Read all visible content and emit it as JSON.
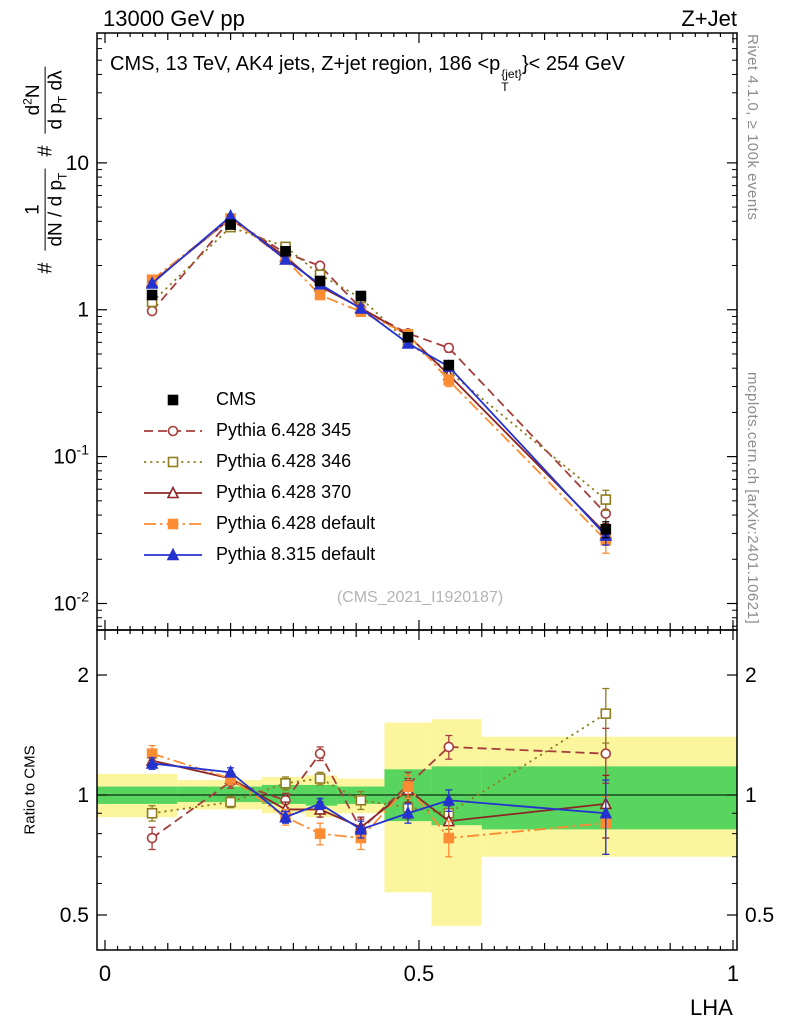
{
  "header": {
    "left": "13000 GeV pp",
    "right": "Z+Jet"
  },
  "title": {
    "pre": "CMS, 13 TeV, AK4 jets, Z+jet region, 186 <p",
    "sub": "T",
    "sup": "{jet}",
    "post": "}< 254 GeV"
  },
  "margin_labels": {
    "right_top": "Rivet 4.1.0, ≥ 100k events",
    "right_bottom": "mcplots.cern.ch [arXiv:2401.10621]"
  },
  "axes": {
    "xlabel": "LHA",
    "ratio_ylabel": "Ratio to CMS",
    "main_ylabel": {
      "hash": "#",
      "f1_num": "1",
      "f1_den_a": "dN / d p",
      "f1_den_sub": "T",
      "f2_num_a": "d",
      "f2_num_sup": "2",
      "f2_num_b": "N",
      "f2_den_a": "d p",
      "f2_den_sub": "T",
      "f2_den_b": " dλ"
    }
  },
  "chart_data": {
    "type": "line",
    "title_text": "CMS, 13 TeV, AK4 jets, Z+jet region, 186 <p_T^{jet}< 254 GeV",
    "watermark": "(CMS_2021_I1920187)",
    "xlabel": "LHA",
    "x": [
      0.075,
      0.2,
      0.2875,
      0.3425,
      0.4075,
      0.4825,
      0.5475,
      0.7975
    ],
    "xlim": [
      -0.0127,
      1.0064
    ],
    "xticks": {
      "major": [
        0,
        0.5,
        1
      ],
      "labels": [
        "0",
        "0.5",
        "1"
      ]
    },
    "main_panel": {
      "yscale": "log",
      "ylim": [
        0.0066,
        76.6
      ],
      "ytick_exponents": [
        -2,
        -1,
        0,
        1
      ]
    },
    "ratio_panel": {
      "yscale": "log",
      "ylim": [
        0.4085,
        2.594
      ],
      "yticks": [
        0.5,
        1,
        2
      ],
      "ytick_labels": [
        "0.5",
        "1",
        "2"
      ],
      "yminor": [
        0.6,
        0.7,
        0.8,
        0.9
      ]
    },
    "colors": {
      "band_yellow": "#fbf69e",
      "band_green": "#58d55e"
    },
    "series": [
      {
        "name": "CMS",
        "color": "#000000",
        "marker": "square",
        "filled": true,
        "line": "none",
        "values": [
          1.26,
          3.8,
          2.5,
          1.57,
          1.24,
          0.65,
          0.42,
          0.032
        ],
        "yerr": [
          0.06,
          0.12,
          0.09,
          0.06,
          0.05,
          0.03,
          0.022,
          0.004
        ],
        "ratio": null,
        "ratio_err": null
      },
      {
        "name": "Pythia 6.428 345",
        "color": "#a63c3c",
        "marker": "circle",
        "filled": false,
        "line": "dash",
        "values": [
          0.98,
          4.1,
          2.43,
          1.99,
          1.02,
          0.69,
          0.55,
          0.041
        ],
        "yerr": [
          0.05,
          0.1,
          0.08,
          0.07,
          0.05,
          0.04,
          0.035,
          0.007
        ],
        "ratio": [
          0.78,
          1.08,
          0.97,
          1.27,
          0.82,
          1.06,
          1.32,
          1.27
        ],
        "ratio_err": [
          0.05,
          0.04,
          0.04,
          0.05,
          0.05,
          0.08,
          0.09,
          0.2
        ]
      },
      {
        "name": "Pythia 6.428 346",
        "color": "#8f7c21",
        "marker": "square",
        "filled": false,
        "line": "dot",
        "values": [
          1.13,
          3.65,
          2.68,
          1.73,
          1.2,
          0.6,
          0.38,
          0.051
        ],
        "yerr": [
          0.05,
          0.1,
          0.08,
          0.06,
          0.05,
          0.03,
          0.03,
          0.008
        ],
        "ratio": [
          0.9,
          0.96,
          1.07,
          1.1,
          0.97,
          0.93,
          0.9,
          1.6
        ],
        "ratio_err": [
          0.04,
          0.03,
          0.04,
          0.04,
          0.05,
          0.06,
          0.08,
          0.25
        ]
      },
      {
        "name": "Pythia 6.428 370",
        "color": "#8c2626",
        "marker": "triangle",
        "filled": false,
        "line": "solid",
        "values": [
          1.54,
          4.18,
          2.3,
          1.44,
          1.03,
          0.67,
          0.36,
          0.03
        ],
        "yerr": [
          0.06,
          0.1,
          0.07,
          0.05,
          0.04,
          0.04,
          0.03,
          0.005
        ],
        "ratio": [
          1.22,
          1.1,
          0.92,
          0.92,
          0.83,
          1.03,
          0.86,
          0.95
        ],
        "ratio_err": [
          0.05,
          0.04,
          0.04,
          0.04,
          0.05,
          0.07,
          0.08,
          0.17
        ]
      },
      {
        "name": "Pythia 6.428 default",
        "color": "#fb8c32",
        "marker": "square",
        "filled": true,
        "line": "dashdot",
        "values": [
          1.6,
          4.18,
          2.2,
          1.26,
          0.97,
          0.68,
          0.33,
          0.027
        ],
        "yerr": [
          0.07,
          0.1,
          0.07,
          0.06,
          0.05,
          0.04,
          0.03,
          0.005
        ],
        "ratio": [
          1.27,
          1.1,
          0.88,
          0.8,
          0.78,
          1.05,
          0.78,
          0.85
        ],
        "ratio_err": [
          0.06,
          0.04,
          0.04,
          0.05,
          0.05,
          0.07,
          0.08,
          0.14
        ]
      },
      {
        "name": "Pythia 8.315 default",
        "color": "#2433cf",
        "marker": "triangle",
        "filled": true,
        "line": "solid",
        "values": [
          1.51,
          4.33,
          2.2,
          1.49,
          1.02,
          0.59,
          0.41,
          0.029
        ],
        "yerr": [
          0.05,
          0.09,
          0.06,
          0.05,
          0.04,
          0.025,
          0.02,
          0.004
        ],
        "ratio": [
          1.2,
          1.14,
          0.88,
          0.95,
          0.82,
          0.9,
          0.97,
          0.9
        ],
        "ratio_err": [
          0.04,
          0.03,
          0.03,
          0.03,
          0.04,
          0.05,
          0.06,
          0.19
        ]
      }
    ],
    "bands": [
      {
        "x0": -0.0127,
        "x1": 0.115,
        "green": [
          0.95,
          1.05
        ],
        "yellow": [
          0.88,
          1.13
        ]
      },
      {
        "x0": 0.115,
        "x1": 0.25,
        "green": [
          0.96,
          1.05
        ],
        "yellow": [
          0.92,
          1.09
        ]
      },
      {
        "x0": 0.25,
        "x1": 0.32,
        "green": [
          0.95,
          1.06
        ],
        "yellow": [
          0.9,
          1.11
        ]
      },
      {
        "x0": 0.32,
        "x1": 0.37,
        "green": [
          0.94,
          1.06
        ],
        "yellow": [
          0.88,
          1.12
        ]
      },
      {
        "x0": 0.37,
        "x1": 0.445,
        "green": [
          0.95,
          1.05
        ],
        "yellow": [
          0.9,
          1.1
        ]
      },
      {
        "x0": 0.445,
        "x1": 0.52,
        "green": [
          0.86,
          1.16
        ],
        "yellow": [
          0.57,
          1.52
        ]
      },
      {
        "x0": 0.52,
        "x1": 0.6,
        "green": [
          0.84,
          1.18
        ],
        "yellow": [
          0.47,
          1.55
        ]
      },
      {
        "x0": 0.6,
        "x1": 1.0064,
        "green": [
          0.82,
          1.18
        ],
        "yellow": [
          0.7,
          1.4
        ]
      }
    ]
  }
}
